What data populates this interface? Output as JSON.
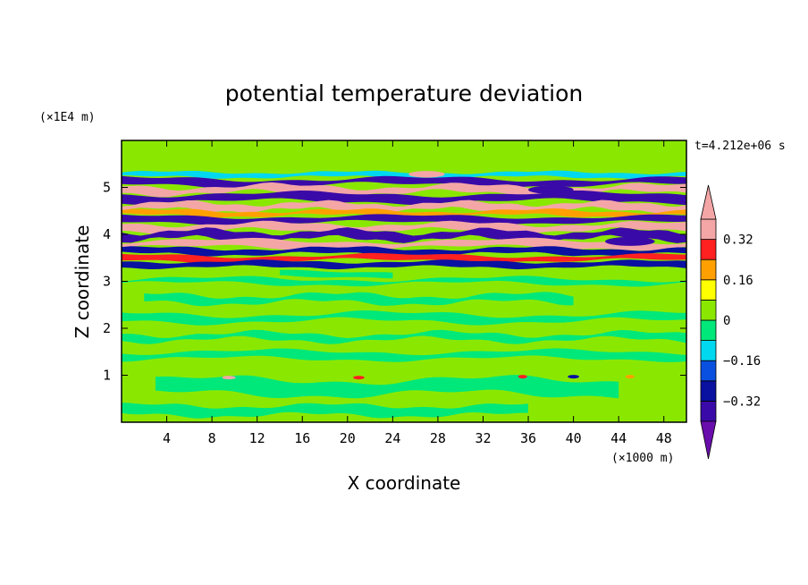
{
  "chart_data": {
    "type": "heatmap",
    "title": "potential temperature deviation",
    "time_label": "t=4.212e+06 s",
    "xlabel": "X coordinate",
    "ylabel": "Z coordinate",
    "x_unit": "(×1000 m)",
    "y_unit": "(×1E4 m)",
    "xlim": [
      0,
      50
    ],
    "ylim": [
      0,
      6
    ],
    "x_ticks": [
      {
        "value": 4,
        "label": "4"
      },
      {
        "value": 8,
        "label": "8"
      },
      {
        "value": 12,
        "label": "12"
      },
      {
        "value": 16,
        "label": "16"
      },
      {
        "value": 20,
        "label": "20"
      },
      {
        "value": 24,
        "label": "24"
      },
      {
        "value": 28,
        "label": "28"
      },
      {
        "value": 32,
        "label": "32"
      },
      {
        "value": 36,
        "label": "36"
      },
      {
        "value": 40,
        "label": "40"
      },
      {
        "value": 44,
        "label": "44"
      },
      {
        "value": 48,
        "label": "48"
      }
    ],
    "y_ticks": [
      {
        "value": 1,
        "label": "1"
      },
      {
        "value": 2,
        "label": "2"
      },
      {
        "value": 3,
        "label": "3"
      },
      {
        "value": 4,
        "label": "4"
      },
      {
        "value": 5,
        "label": "5"
      }
    ],
    "colorbar": {
      "levels": [
        -0.4,
        -0.32,
        -0.24,
        -0.16,
        -0.08,
        0,
        0.08,
        0.16,
        0.24,
        0.32,
        0.4
      ],
      "colors": [
        "#6a0dad",
        "#3a0aa8",
        "#0a10a0",
        "#0a50e0",
        "#00d8f0",
        "#00e87a",
        "#8ae800",
        "#ffff00",
        "#ffa000",
        "#ff2020",
        "#f4a6a6"
      ],
      "labels": [
        {
          "value": 0.32,
          "label": "0.32"
        },
        {
          "value": 0.16,
          "label": "0.16"
        },
        {
          "value": 0,
          "label": "0"
        },
        {
          "value": -0.16,
          "label": "−0.16"
        },
        {
          "value": -0.32,
          "label": "−0.32"
        }
      ],
      "extend": "both"
    },
    "background_value": 0.04,
    "bands": [
      {
        "x0": 0,
        "x1": 50,
        "z0": 5.22,
        "z1": 5.32,
        "v": -0.1,
        "amp": 0.03,
        "wave": 3
      },
      {
        "x0": 0,
        "x1": 50,
        "z0": 5.05,
        "z1": 5.18,
        "v": -0.38,
        "amp": 0.05,
        "wave": 2
      },
      {
        "x0": 0,
        "x1": 50,
        "z0": 4.88,
        "z1": 5.02,
        "v": 0.45,
        "amp": 0.06,
        "wave": 3
      },
      {
        "x0": 0,
        "x1": 50,
        "z0": 4.7,
        "z1": 4.86,
        "v": -0.4,
        "amp": 0.05,
        "wave": 2
      },
      {
        "x0": 0,
        "x1": 50,
        "z0": 4.52,
        "z1": 4.66,
        "v": 0.35,
        "amp": 0.05,
        "wave": 4
      },
      {
        "x0": 0,
        "x1": 50,
        "z0": 4.4,
        "z1": 4.5,
        "v": 0.2,
        "amp": 0.04,
        "wave": 3
      },
      {
        "x0": 0,
        "x1": 50,
        "z0": 4.25,
        "z1": 4.38,
        "v": -0.35,
        "amp": 0.04,
        "wave": 2
      },
      {
        "x0": 0,
        "x1": 50,
        "z0": 4.08,
        "z1": 4.22,
        "v": 0.42,
        "amp": 0.05,
        "wave": 3
      },
      {
        "x0": 0,
        "x1": 50,
        "z0": 3.9,
        "z1": 4.06,
        "v": -0.38,
        "amp": 0.06,
        "wave": 4
      },
      {
        "x0": 0,
        "x1": 50,
        "z0": 3.72,
        "z1": 3.86,
        "v": 0.36,
        "amp": 0.05,
        "wave": 2
      },
      {
        "x0": 0,
        "x1": 50,
        "z0": 3.58,
        "z1": 3.7,
        "v": -0.3,
        "amp": 0.04,
        "wave": 3
      },
      {
        "x0": 0,
        "x1": 50,
        "z0": 3.44,
        "z1": 3.55,
        "v": 0.3,
        "amp": 0.04,
        "wave": 2
      },
      {
        "x0": 0,
        "x1": 50,
        "z0": 3.3,
        "z1": 3.42,
        "v": -0.25,
        "amp": 0.03,
        "wave": 3
      },
      {
        "x0": 14,
        "x1": 24,
        "z0": 3.1,
        "z1": 3.2,
        "v": -0.06,
        "amp": 0.03,
        "wave": 2
      },
      {
        "x0": 0,
        "x1": 50,
        "z0": 2.95,
        "z1": 3.05,
        "v": -0.04,
        "amp": 0.05,
        "wave": 2
      },
      {
        "x0": 2,
        "x1": 40,
        "z0": 2.55,
        "z1": 2.7,
        "v": -0.04,
        "amp": 0.06,
        "wave": 3
      },
      {
        "x0": 0,
        "x1": 50,
        "z0": 2.15,
        "z1": 2.3,
        "v": -0.05,
        "amp": 0.06,
        "wave": 2
      },
      {
        "x0": 0,
        "x1": 50,
        "z0": 1.75,
        "z1": 1.88,
        "v": -0.04,
        "amp": 0.06,
        "wave": 3
      },
      {
        "x0": 0,
        "x1": 50,
        "z0": 1.35,
        "z1": 1.5,
        "v": -0.05,
        "amp": 0.05,
        "wave": 2
      },
      {
        "x0": 3,
        "x1": 44,
        "z0": 0.6,
        "z1": 0.9,
        "v": -0.05,
        "amp": 0.08,
        "wave": 2
      },
      {
        "x0": 0,
        "x1": 36,
        "z0": 0.15,
        "z1": 0.35,
        "v": -0.04,
        "amp": 0.05,
        "wave": 3
      }
    ],
    "spots": [
      {
        "x": 9.5,
        "z": 0.95,
        "r": 0.6,
        "v": 0.36
      },
      {
        "x": 21,
        "z": 0.95,
        "r": 0.5,
        "v": 0.3
      },
      {
        "x": 35.5,
        "z": 0.97,
        "r": 0.4,
        "v": 0.3
      },
      {
        "x": 40,
        "z": 0.97,
        "r": 0.5,
        "v": -0.3
      },
      {
        "x": 45,
        "z": 0.97,
        "r": 0.4,
        "v": 0.2
      },
      {
        "x": 27,
        "z": 5.28,
        "r": 1.6,
        "v": 0.4
      },
      {
        "x": 38,
        "z": 4.95,
        "r": 2.0,
        "v": -0.35
      },
      {
        "x": 45,
        "z": 3.85,
        "r": 2.2,
        "v": -0.4
      }
    ]
  }
}
